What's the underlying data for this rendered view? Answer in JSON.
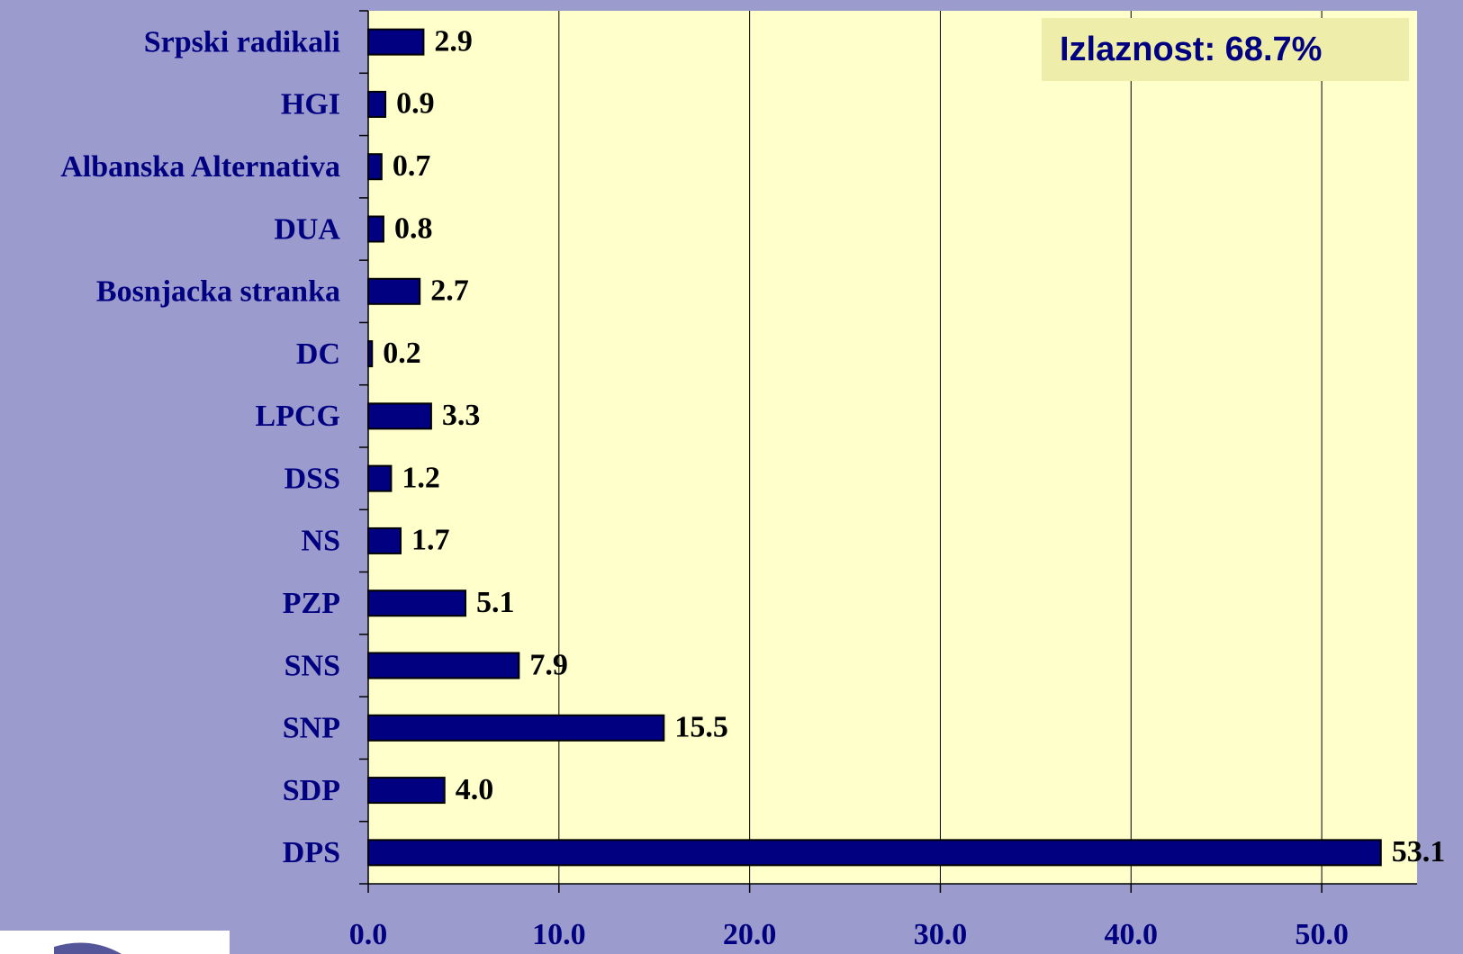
{
  "chart_data": {
    "type": "bar",
    "orientation": "horizontal",
    "annotation": "Izlaznost: 68.7%",
    "categories": [
      "Srpski radikali",
      "HGI",
      "Albanska Alternativa",
      "DUA",
      "Bosnjacka stranka",
      "DC",
      "LPCG",
      "DSS",
      "NS",
      "PZP",
      "SNS",
      "SNP",
      "SDP",
      "DPS"
    ],
    "values": [
      2.9,
      0.9,
      0.7,
      0.8,
      2.7,
      0.2,
      3.3,
      1.2,
      1.7,
      5.1,
      7.9,
      15.5,
      4.0,
      53.1
    ],
    "value_labels": [
      "2.9",
      "0.9",
      "0.7",
      "0.8",
      "2.7",
      "0.2",
      "3.3",
      "1.2",
      "1.7",
      "5.1",
      "7.9",
      "15.5",
      "4.0",
      "53.1"
    ],
    "color": "#000080",
    "xlim": [
      0,
      55
    ],
    "xticks": [
      {
        "value": 0,
        "label": "0.0"
      },
      {
        "value": 10,
        "label": "10.0"
      },
      {
        "value": 20,
        "label": "20.0"
      },
      {
        "value": 30,
        "label": "30.0"
      },
      {
        "value": 40,
        "label": "40.0"
      },
      {
        "value": 50,
        "label": "50.0"
      }
    ],
    "grid": true
  }
}
